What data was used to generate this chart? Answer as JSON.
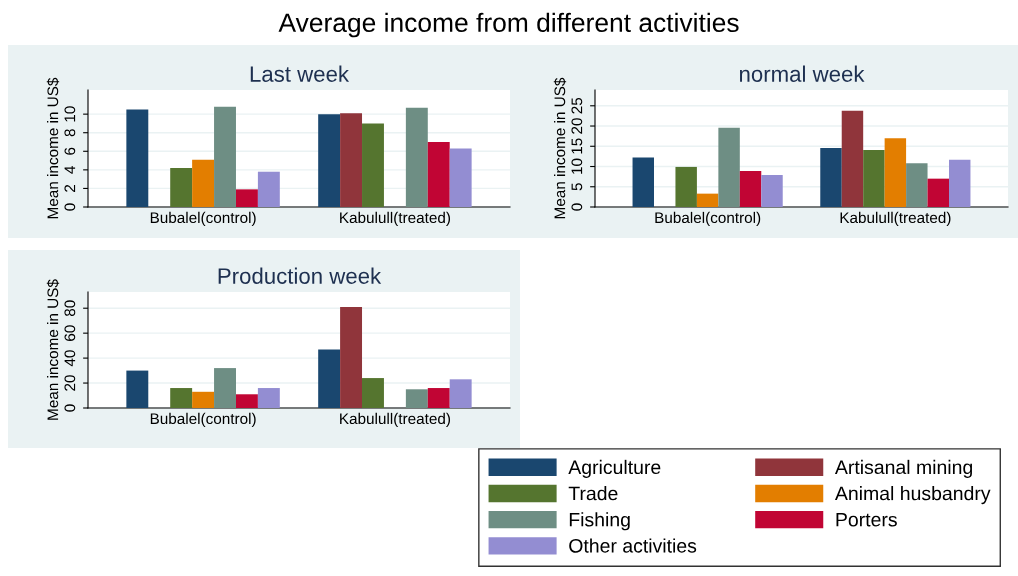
{
  "chart_data": [
    {
      "type": "bar",
      "title": "Last week",
      "ylabel": "Mean income in US$",
      "annotations": [
        "Average income from different activities"
      ],
      "categories": [
        "Bubalel(control)",
        "Kabulull(treated)"
      ],
      "ylim": [
        0,
        12.6
      ],
      "yticks": [
        0,
        2,
        4,
        6,
        8,
        10
      ],
      "grid": "y",
      "legend": "bottom right",
      "series": [
        {
          "name": "Agriculture",
          "color": "#1a476f",
          "values": [
            10.5,
            10.0
          ]
        },
        {
          "name": "Artisanal mining",
          "color": "#90353b",
          "values": [
            null,
            10.1
          ]
        },
        {
          "name": "Trade",
          "color": "#55752f",
          "values": [
            4.2,
            9.0
          ]
        },
        {
          "name": "Animal husbandry",
          "color": "#e37e00",
          "values": [
            5.1,
            null
          ]
        },
        {
          "name": "Fishing",
          "color": "#6e8e84",
          "values": [
            10.8,
            10.7
          ]
        },
        {
          "name": "Porters",
          "color": "#c10534",
          "values": [
            1.9,
            7.0
          ]
        },
        {
          "name": "Other activities",
          "color": "#938dd2",
          "values": [
            3.8,
            6.3
          ]
        }
      ]
    },
    {
      "type": "bar",
      "title": "normal week",
      "ylabel": "Mean income in US$",
      "categories": [
        "Bubalel(control)",
        "Kabulull(treated)"
      ],
      "ylim": [
        0,
        28.9
      ],
      "yticks": [
        0,
        5,
        10,
        15,
        20,
        25
      ],
      "grid": "y",
      "series": [
        {
          "color": "#1a476f",
          "values": [
            12.2,
            14.6
          ]
        },
        {
          "color": "#90353b",
          "values": [
            null,
            23.8
          ]
        },
        {
          "color": "#55752f",
          "values": [
            9.9,
            14.1
          ]
        },
        {
          "color": "#e37e00",
          "values": [
            3.3,
            17.0
          ]
        },
        {
          "color": "#6e8e84",
          "values": [
            19.6,
            10.8
          ]
        },
        {
          "color": "#c10534",
          "values": [
            8.9,
            7.0
          ]
        },
        {
          "color": "#938dd2",
          "values": [
            7.9,
            11.7
          ]
        }
      ]
    },
    {
      "type": "bar",
      "title": "Production week",
      "ylabel": "Mean income in US$",
      "categories": [
        "Bubalel(control)",
        "Kabulull(treated)"
      ],
      "ylim": [
        0,
        93
      ],
      "yticks": [
        0,
        20,
        40,
        60,
        80
      ],
      "grid": "y",
      "series": [
        {
          "color": "#1a476f",
          "values": [
            30,
            47
          ]
        },
        {
          "color": "#90353b",
          "values": [
            null,
            81
          ]
        },
        {
          "color": "#55752f",
          "values": [
            16,
            24
          ]
        },
        {
          "color": "#e37e00",
          "values": [
            13,
            null
          ]
        },
        {
          "color": "#6e8e84",
          "values": [
            32,
            15
          ]
        },
        {
          "color": "#c10534",
          "values": [
            11,
            16
          ]
        },
        {
          "color": "#938dd2",
          "values": [
            16,
            23
          ]
        }
      ]
    }
  ]
}
